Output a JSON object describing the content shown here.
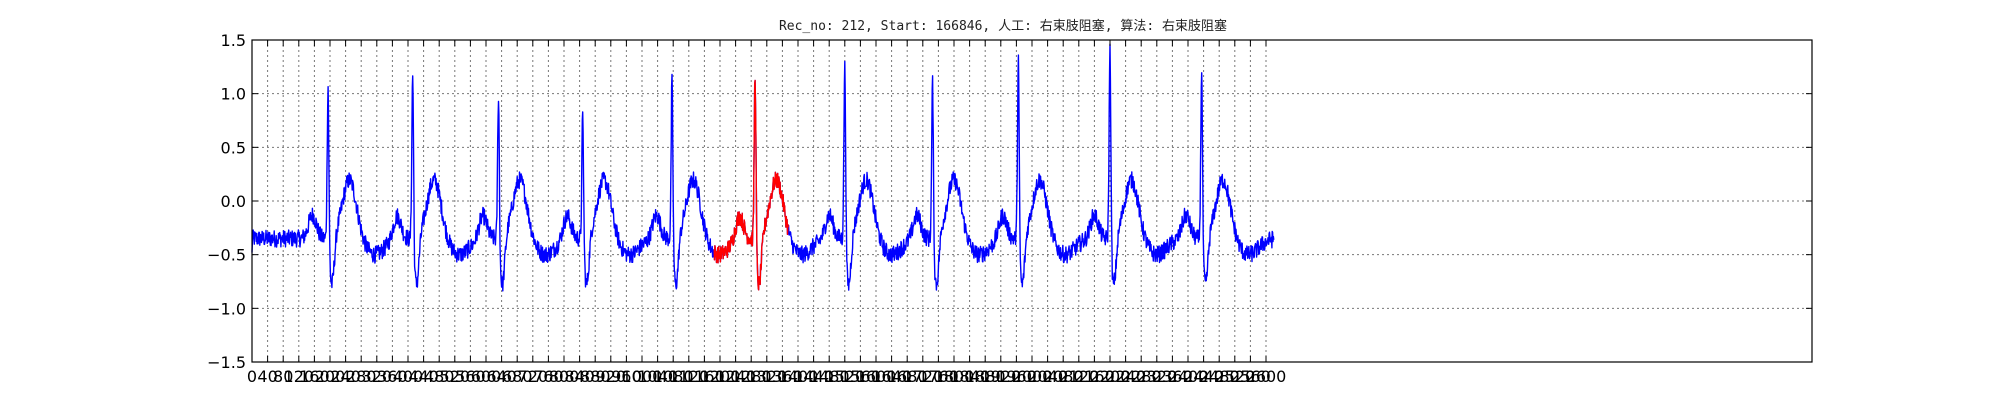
{
  "chart_data": {
    "type": "line",
    "title": "Rec_no: 212, Start: 166846, 人工: 右束肢阻塞, 算法: 右束肢阻塞",
    "xlabel": "",
    "ylabel": "",
    "xlim": [
      0,
      4000
    ],
    "ylim": [
      -1.5,
      1.5
    ],
    "grid": true,
    "x_ticks": [
      0,
      40,
      80,
      120,
      160,
      200,
      240,
      280,
      320,
      360,
      400,
      440,
      480,
      520,
      560,
      600,
      640,
      680,
      720,
      760,
      800,
      840,
      880,
      920,
      960,
      1000,
      1040,
      1080,
      1120,
      1160,
      1200,
      1240,
      1280,
      1320,
      1360,
      1400,
      1440,
      1480,
      1520,
      1560,
      1600,
      1640,
      1680,
      1720,
      1760,
      1800,
      1840,
      1880,
      1920,
      1960,
      2000,
      2040,
      2080,
      2120,
      2160,
      2200,
      2240,
      2280,
      2320,
      2360,
      2400,
      2440,
      2480,
      2520,
      2560,
      2600
    ],
    "y_ticks": [
      -1.5,
      -1.0,
      -0.5,
      0.0,
      0.5,
      1.0,
      1.5
    ],
    "y_tick_labels": [
      "−1.5",
      "−1.0",
      "−0.5",
      "0.0",
      "0.5",
      "1.0",
      "1.5"
    ],
    "beats": [
      {
        "x": 195,
        "peak": 1.05
      },
      {
        "x": 412,
        "peak": 1.12
      },
      {
        "x": 632,
        "peak": 0.98
      },
      {
        "x": 848,
        "peak": 0.85
      },
      {
        "x": 1077,
        "peak": 1.08
      },
      {
        "x": 1290,
        "peak": 1.13
      },
      {
        "x": 1520,
        "peak": 1.17
      },
      {
        "x": 1745,
        "peak": 1.08
      },
      {
        "x": 1965,
        "peak": 1.23
      },
      {
        "x": 2200,
        "peak": 1.28
      },
      {
        "x": 2435,
        "peak": 1.17
      }
    ],
    "series": [
      {
        "color": "#0000ff",
        "x_range": [
          0,
          2620
        ]
      },
      {
        "color": "#ff0000",
        "x_range": [
          1185,
          1375
        ]
      }
    ]
  }
}
